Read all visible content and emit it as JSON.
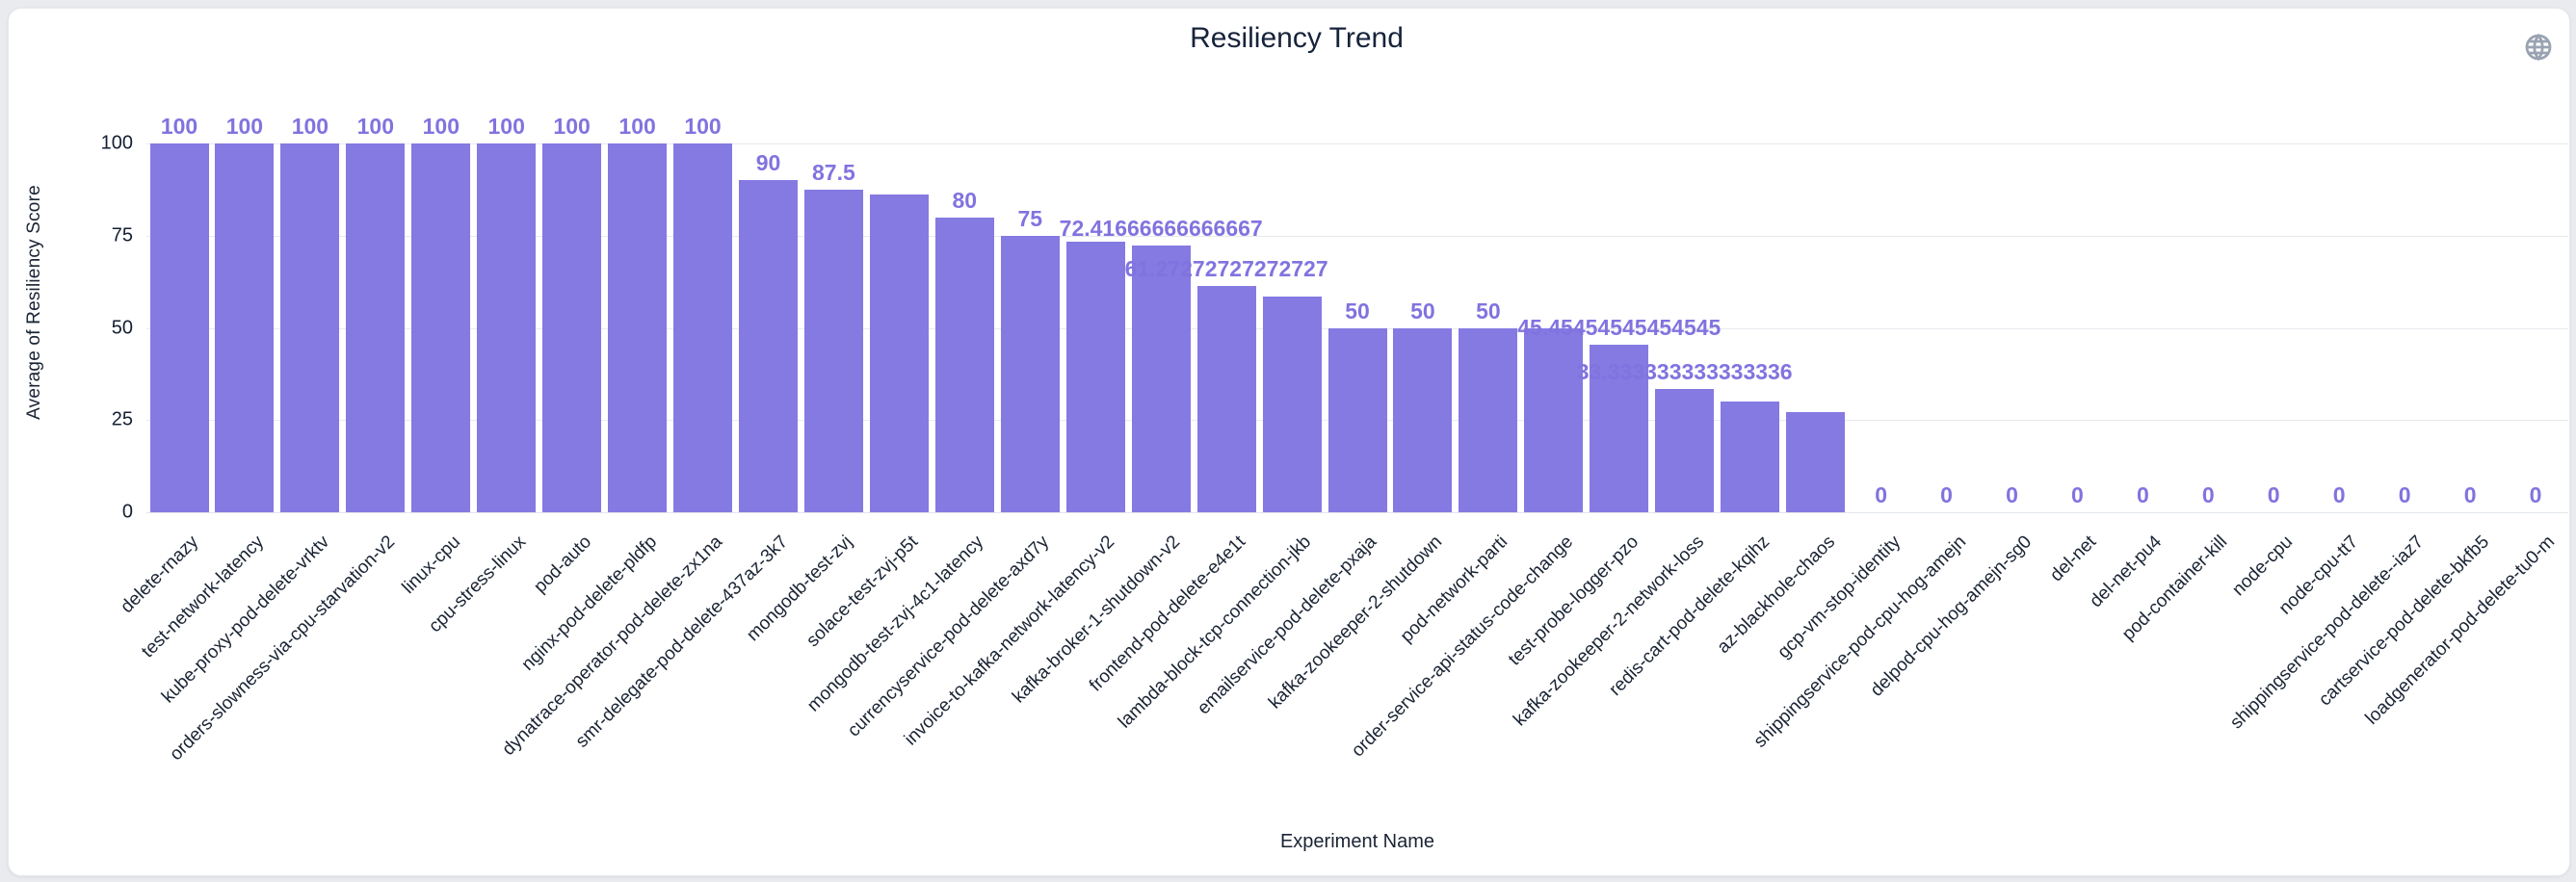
{
  "card": {
    "title": "Resiliency Trend",
    "globe_icon": "globe"
  },
  "colors": {
    "bar": "#8579E2",
    "value_label": "#8173DF",
    "text_dark": "#1a2434",
    "gridline": "#e8eaee",
    "card_background": "#ffffff",
    "page_background": "#e9ebef",
    "globe_icon": "#9aa3b2"
  },
  "chart_data": {
    "type": "bar",
    "title": "Resiliency Trend",
    "xlabel": "Experiment Name",
    "ylabel": "Average of Resiliency Score",
    "ylim": [
      0,
      100
    ],
    "yticks": [
      0,
      25,
      50,
      75,
      100
    ],
    "grid": true,
    "legend": false,
    "categories": [
      "delete-rnazy",
      "test-network-latency",
      "kube-proxy-pod-delete-vrktv",
      "orders-slowness-via-cpu-starvation-v2",
      "linux-cpu",
      "cpu-stress-linux",
      "pod-auto",
      "nginx-pod-delete-pldfp",
      "dynatrace-operator-pod-delete-zx1na",
      "smr-delegate-pod-delete-437az-3k7",
      "mongodb-test-zvj",
      "solace-test-zvj-p5t",
      "mongodb-test-zvj-4c1-latency",
      "currencyservice-pod-delete-axd7y",
      "invoice-to-kafka-network-latency-v2",
      "kafka-broker-1-shutdown-v2",
      "frontend-pod-delete-e4e1t",
      "lambda-block-tcp-connection-jkb",
      "emailservice-pod-delete-pxaja",
      "kafka-zookeeper-2-shutdown",
      "pod-network-parti",
      "order-service-api-status-code-change",
      "test-probe-logger-pzo",
      "kafka-zookeeper-2-network-loss",
      "redis-cart-pod-delete-kqihz",
      "az-blackhole-chaos",
      "gcp-vm-stop-identity",
      "shippingservice-pod-cpu-hog-amejn",
      "delpod-cpu-hog-amejn-sg0",
      "del-net",
      "del-net-pu4",
      "pod-container-kill",
      "node-cpu",
      "node-cpu-tt7",
      "shippingservice-pod-delete--iaz7",
      "cartservice-pod-delete-bkfb5",
      "loadgenerator-pod-delete-tu0-m"
    ],
    "values": [
      100,
      100,
      100,
      100,
      100,
      100,
      100,
      100,
      100,
      90,
      87.5,
      86.25,
      80,
      75,
      73.33,
      72.41666666666667,
      61.27272727272727,
      58.5,
      50,
      50,
      50,
      50,
      45.45454545454545,
      33.333333333333336,
      30,
      27.27272727272727,
      0,
      0,
      0,
      0,
      0,
      0,
      0,
      0,
      0,
      0,
      0
    ],
    "value_labels": [
      "100",
      "100",
      "100",
      "100",
      "100",
      "100",
      "100",
      "100",
      "100",
      "90",
      "87.5",
      null,
      "80",
      "75",
      null,
      "72.41666666666667",
      "61.27272727272727",
      null,
      "50",
      "50",
      "50",
      null,
      "45.45454545454545",
      "33.333333333333336",
      null,
      null,
      "0",
      "0",
      "0",
      "0",
      "0",
      "0",
      "0",
      "0",
      "0",
      "0",
      "0"
    ]
  }
}
